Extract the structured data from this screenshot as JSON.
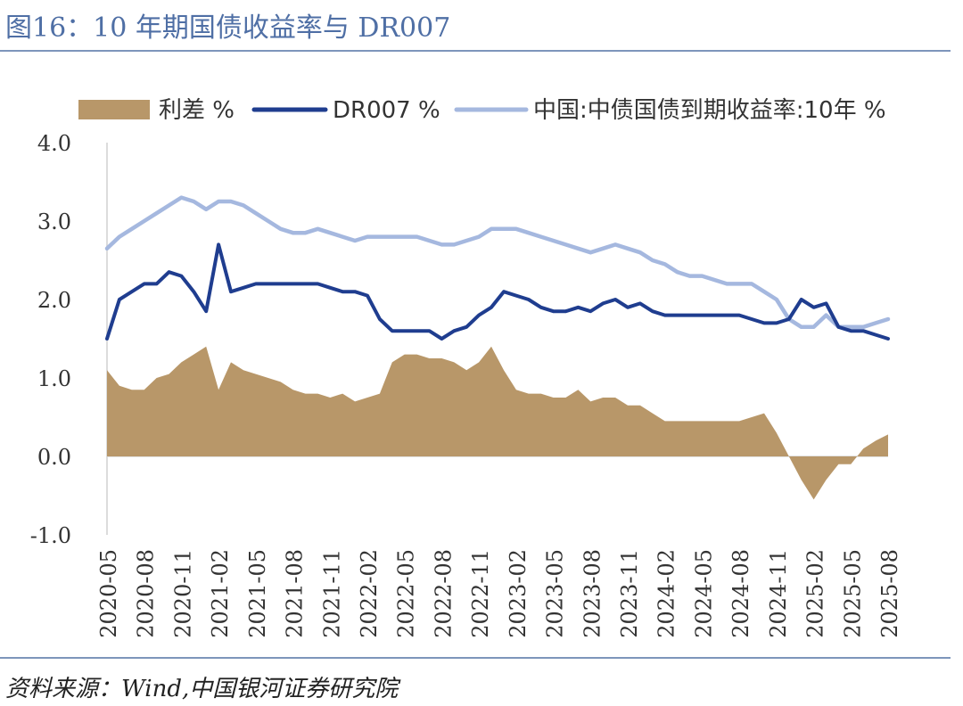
{
  "header": {
    "title": "图16：10 年期国债收益率与 DR007"
  },
  "footer": {
    "source": "资料来源：Wind,中国银河证券研究院"
  },
  "chart_data": {
    "type": "line",
    "ylim": [
      -1.0,
      4.0
    ],
    "yticks": [
      "4.0",
      "3.0",
      "2.0",
      "1.0",
      "0.0",
      "-1.0"
    ],
    "xticks": [
      "2020-05",
      "2020-08",
      "2020-11",
      "2021-02",
      "2021-05",
      "2021-08",
      "2021-11",
      "2022-02",
      "2022-05",
      "2022-08",
      "2022-11",
      "2023-02",
      "2023-05",
      "2023-08",
      "2023-11",
      "2024-02",
      "2024-05",
      "2024-08",
      "2024-11",
      "2025-02",
      "2025-05",
      "2025-08"
    ],
    "x": [
      "2020-05",
      "2020-06",
      "2020-07",
      "2020-08",
      "2020-09",
      "2020-10",
      "2020-11",
      "2020-12",
      "2021-01",
      "2021-02",
      "2021-03",
      "2021-04",
      "2021-05",
      "2021-06",
      "2021-07",
      "2021-08",
      "2021-09",
      "2021-10",
      "2021-11",
      "2021-12",
      "2022-01",
      "2022-02",
      "2022-03",
      "2022-04",
      "2022-05",
      "2022-06",
      "2022-07",
      "2022-08",
      "2022-09",
      "2022-10",
      "2022-11",
      "2022-12",
      "2023-01",
      "2023-02",
      "2023-03",
      "2023-04",
      "2023-05",
      "2023-06",
      "2023-07",
      "2023-08",
      "2023-09",
      "2023-10",
      "2023-11",
      "2023-12",
      "2024-01",
      "2024-02",
      "2024-03",
      "2024-04",
      "2024-05",
      "2024-06",
      "2024-07",
      "2024-08",
      "2024-09",
      "2024-10",
      "2024-11",
      "2024-12",
      "2025-01",
      "2025-02",
      "2025-03",
      "2025-04",
      "2025-05",
      "2025-06",
      "2025-07",
      "2025-08"
    ],
    "series": [
      {
        "name": "利差 %",
        "kind": "area",
        "color": "#b89769",
        "values": [
          1.1,
          0.9,
          0.85,
          0.85,
          1.0,
          1.05,
          1.2,
          1.3,
          1.4,
          0.85,
          1.2,
          1.1,
          1.05,
          1.0,
          0.95,
          0.85,
          0.8,
          0.8,
          0.75,
          0.8,
          0.7,
          0.75,
          0.8,
          1.2,
          1.3,
          1.3,
          1.25,
          1.25,
          1.2,
          1.1,
          1.2,
          1.4,
          1.1,
          0.85,
          0.8,
          0.8,
          0.75,
          0.75,
          0.85,
          0.7,
          0.75,
          0.75,
          0.65,
          0.65,
          0.55,
          0.45,
          0.45,
          0.45,
          0.45,
          0.45,
          0.45,
          0.45,
          0.5,
          0.55,
          0.3,
          0.0,
          -0.3,
          -0.55,
          -0.3,
          -0.1,
          -0.1,
          0.1,
          0.2,
          0.28
        ]
      },
      {
        "name": "DR007 %",
        "kind": "line",
        "color": "#1f3d8f",
        "values": [
          1.5,
          2.0,
          2.1,
          2.2,
          2.2,
          2.35,
          2.3,
          2.1,
          1.85,
          2.7,
          2.1,
          2.15,
          2.2,
          2.2,
          2.2,
          2.2,
          2.2,
          2.2,
          2.15,
          2.1,
          2.1,
          2.05,
          1.75,
          1.6,
          1.6,
          1.6,
          1.6,
          1.5,
          1.6,
          1.65,
          1.8,
          1.9,
          2.1,
          2.05,
          2.0,
          1.9,
          1.85,
          1.85,
          1.9,
          1.85,
          1.95,
          2.0,
          1.9,
          1.95,
          1.85,
          1.8,
          1.8,
          1.8,
          1.8,
          1.8,
          1.8,
          1.8,
          1.75,
          1.7,
          1.7,
          1.75,
          2.0,
          1.9,
          1.95,
          1.65,
          1.6,
          1.6,
          1.55,
          1.5
        ]
      },
      {
        "name": "中国:中债国债到期收益率:10年 %",
        "kind": "line",
        "color": "#a5b8df",
        "values": [
          2.65,
          2.8,
          2.9,
          3.0,
          3.1,
          3.2,
          3.3,
          3.25,
          3.15,
          3.25,
          3.25,
          3.2,
          3.1,
          3.0,
          2.9,
          2.85,
          2.85,
          2.9,
          2.85,
          2.8,
          2.75,
          2.8,
          2.8,
          2.8,
          2.8,
          2.8,
          2.75,
          2.7,
          2.7,
          2.75,
          2.8,
          2.9,
          2.9,
          2.9,
          2.85,
          2.8,
          2.75,
          2.7,
          2.65,
          2.6,
          2.65,
          2.7,
          2.65,
          2.6,
          2.5,
          2.45,
          2.35,
          2.3,
          2.3,
          2.25,
          2.2,
          2.2,
          2.2,
          2.1,
          2.0,
          1.75,
          1.65,
          1.65,
          1.8,
          1.65,
          1.65,
          1.65,
          1.7,
          1.75
        ]
      }
    ]
  }
}
